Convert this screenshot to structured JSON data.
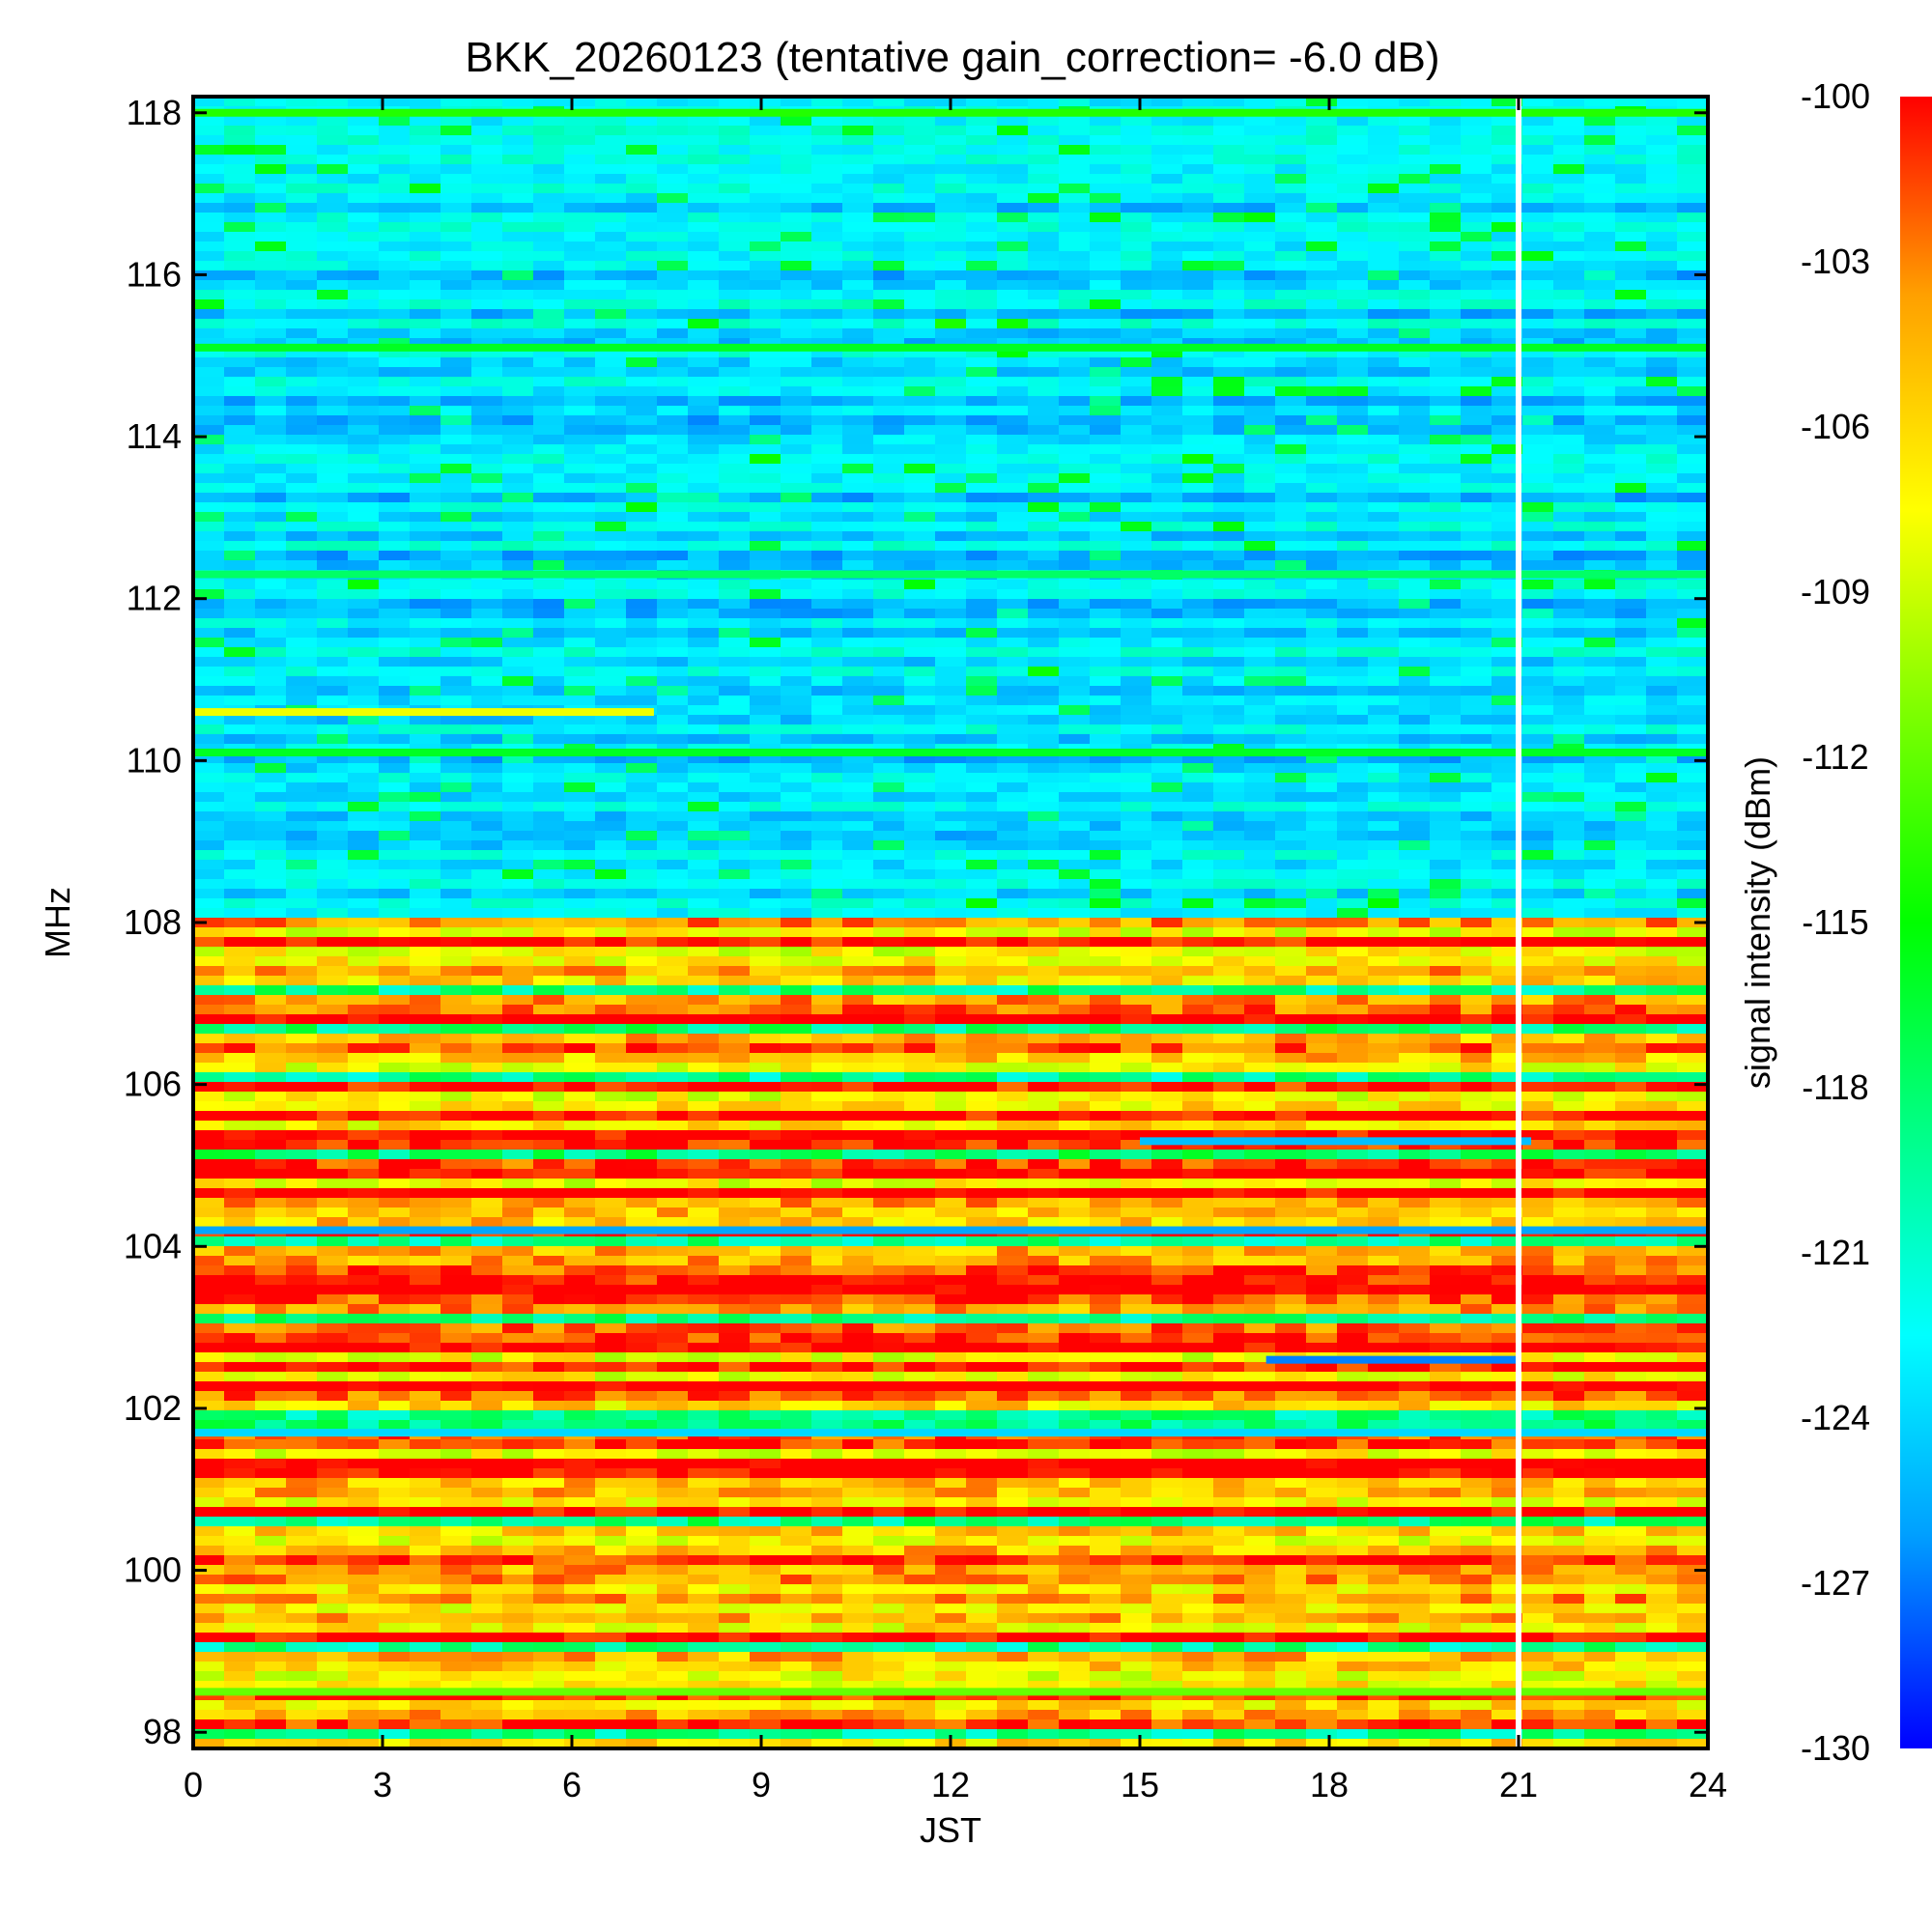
{
  "chart_data": {
    "type": "heatmap",
    "title": "BKK_20260123 (tentative gain_correction= -6.0 dB)",
    "xlabel": "JST",
    "ylabel": "MHz",
    "colorbar_label": "signal intensity (dBm)",
    "xlim": [
      0,
      24
    ],
    "ylim": [
      97.8,
      118.2
    ],
    "x_ticks": [
      0,
      3,
      6,
      9,
      12,
      15,
      18,
      21,
      24
    ],
    "x_tick_labels": [
      "0",
      "3",
      "6",
      "9",
      "12",
      "15",
      "18",
      "21",
      "24"
    ],
    "y_ticks": [
      98,
      100,
      102,
      104,
      106,
      108,
      110,
      112,
      114,
      116,
      118
    ],
    "y_tick_labels": [
      "98",
      "100",
      "102",
      "104",
      "106",
      "108",
      "110",
      "112",
      "114",
      "116",
      "118"
    ],
    "color_range": [
      -130,
      -100
    ],
    "colorbar_ticks": [
      -100,
      -103,
      -106,
      -109,
      -112,
      -115,
      -118,
      -121,
      -124,
      -127,
      -130
    ],
    "colorbar_tick_labels": [
      "-100",
      "-103",
      "-106",
      "-109",
      "-112",
      "-115",
      "-118",
      "-121",
      "-124",
      "-127",
      "-130"
    ],
    "colormap_stops": [
      "#0000ff",
      "#00a0ff",
      "#00ffff",
      "#00ff80",
      "#00ff00",
      "#80ff00",
      "#ffff00",
      "#ffa000",
      "#ff0000"
    ],
    "data_gap_hour": 21.0,
    "regions": [
      {
        "f_min": 108.0,
        "f_max": 118.2,
        "typical_level_dbm": -125
      },
      {
        "f_min": 97.8,
        "f_max": 108.0,
        "typical_level_dbm": -102
      }
    ],
    "carriers": [
      {
        "freq": 118.0,
        "t_start": 0,
        "t_end": 24,
        "level_dbm": -114
      },
      {
        "freq": 115.1,
        "t_start": 0,
        "t_end": 24,
        "level_dbm": -116
      },
      {
        "freq": 112.3,
        "t_start": 0,
        "t_end": 24,
        "level_dbm": -118
      },
      {
        "freq": 110.6,
        "t_start": 0,
        "t_end": 7.3,
        "level_dbm": -108
      },
      {
        "freq": 110.1,
        "t_start": 0,
        "t_end": 24,
        "level_dbm": -116
      },
      {
        "freq": 104.2,
        "t_start": 0,
        "t_end": 24,
        "level_dbm": -126
      },
      {
        "freq": 102.6,
        "t_start": 17,
        "t_end": 21,
        "level_dbm": -127
      },
      {
        "freq": 101.7,
        "t_start": 0,
        "t_end": 24,
        "level_dbm": -124
      },
      {
        "freq": 105.3,
        "t_start": 15,
        "t_end": 21.2,
        "level_dbm": -125
      },
      {
        "freq": 98.5,
        "t_start": 0,
        "t_end": 24,
        "level_dbm": -112
      }
    ]
  }
}
